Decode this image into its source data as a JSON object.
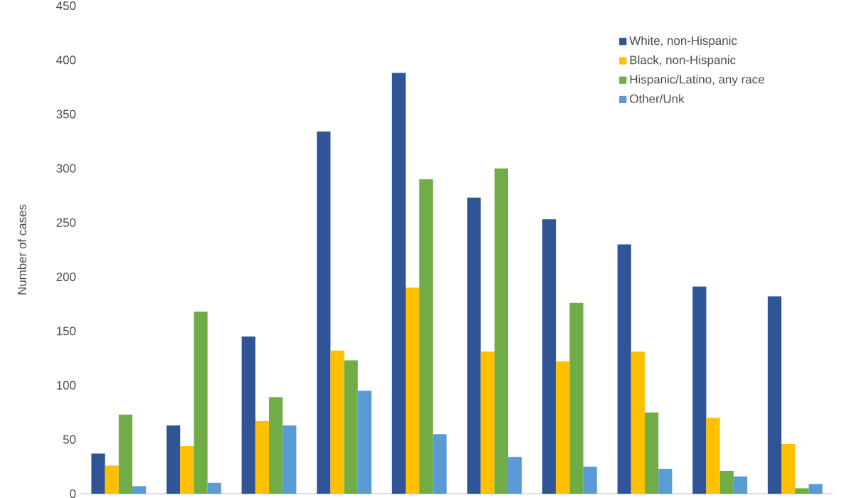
{
  "chart_data": {
    "type": "bar",
    "ylabel": "Number of cases",
    "categories": [
      null,
      null,
      null,
      null,
      null,
      null,
      null,
      null,
      null,
      null
    ],
    "series": [
      {
        "name": "White, non-Hispanic",
        "color": "#2f5597",
        "values": [
          37,
          63,
          145,
          334,
          388,
          273,
          253,
          230,
          191,
          182
        ]
      },
      {
        "name": "Black, non-Hispanic",
        "color": "#ffc000",
        "values": [
          26,
          44,
          67,
          132,
          190,
          131,
          122,
          131,
          70,
          46
        ]
      },
      {
        "name": "Hispanic/Latino, any race",
        "color": "#70ad47",
        "values": [
          73,
          168,
          89,
          123,
          290,
          300,
          176,
          75,
          21,
          5
        ]
      },
      {
        "name": "Other/Unk",
        "color": "#5b9bd5",
        "values": [
          7,
          10,
          63,
          95,
          55,
          34,
          25,
          23,
          16,
          9
        ]
      }
    ],
    "ylim": [
      0,
      450
    ],
    "yticks": [
      0,
      50,
      100,
      150,
      200,
      250,
      300,
      350,
      400,
      450
    ],
    "legend": "top right",
    "grid": false
  }
}
